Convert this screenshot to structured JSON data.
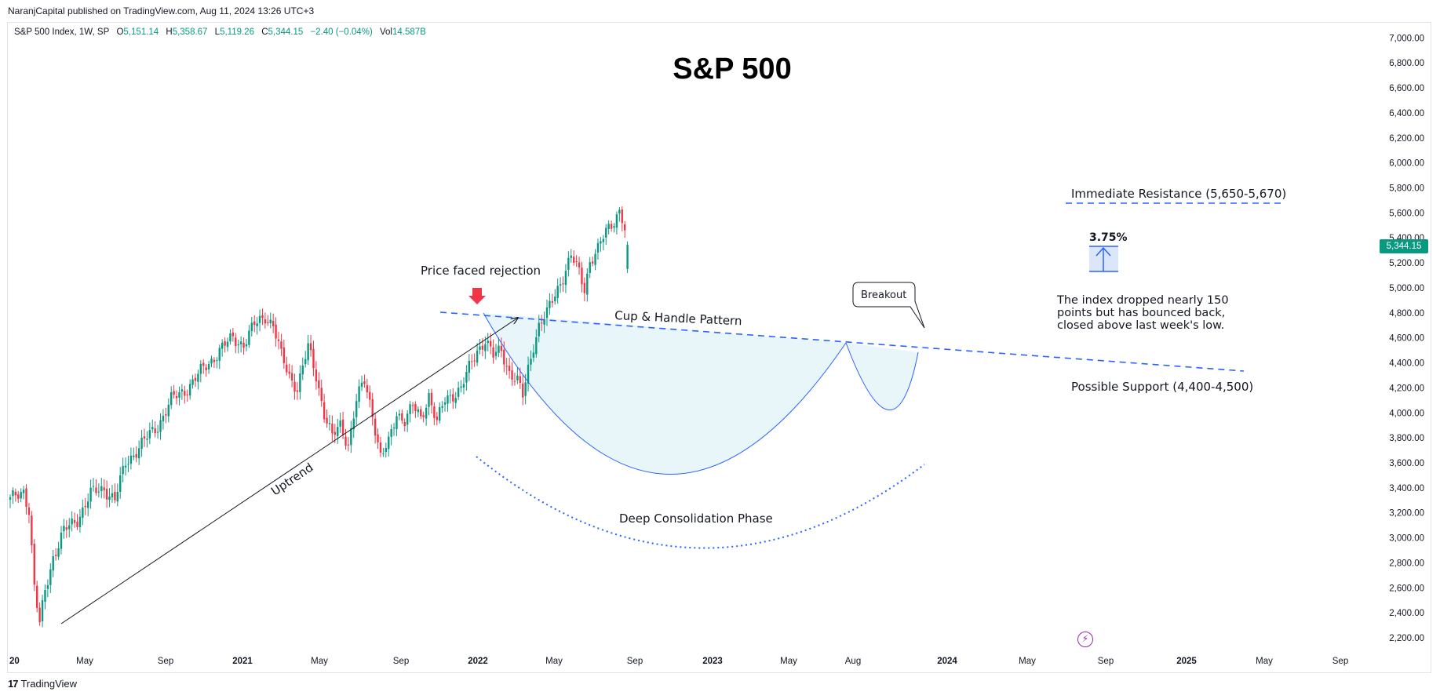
{
  "header": {
    "published": "NaranjCapital published on TradingView.com, Aug 11, 2024 13:26 UTC+3"
  },
  "legend": {
    "symbol": "S&P 500 Index, 1W, SP",
    "o_label": "O",
    "o_value": "5,151.14",
    "h_label": "H",
    "h_value": "5,358.67",
    "l_label": "L",
    "l_value": "5,119.26",
    "c_label": "C",
    "c_value": "5,344.15",
    "change": "−2.40 (−0.04%)",
    "vol_label": "Vol",
    "vol_value": "14.587B"
  },
  "current_price": "5,344.15",
  "brand": {
    "name": "TradingView",
    "logo": "17"
  },
  "colors": {
    "up": "#089981",
    "down": "#f23645",
    "blue": "#2962ff",
    "cup_fill": "#e8f6fa"
  },
  "chart_data": {
    "type": "candlestick",
    "title": "S&P 500",
    "yticks": [
      2200,
      2400,
      2600,
      2800,
      3000,
      3200,
      3400,
      3600,
      3800,
      4000,
      4200,
      4400,
      4600,
      4800,
      5000,
      5200,
      5400,
      5600,
      5800,
      6000,
      6200,
      6400,
      6600,
      6800,
      7000
    ],
    "ytick_labels": [
      "2,200.00",
      "2,400.00",
      "2,600.00",
      "2,800.00",
      "3,000.00",
      "3,200.00",
      "3,400.00",
      "3,600.00",
      "3,800.00",
      "4,000.00",
      "4,200.00",
      "4,400.00",
      "4,600.00",
      "4,800.00",
      "5,000.00",
      "5,200.00",
      "5,400.00",
      "5,600.00",
      "5,800.00",
      "6,000.00",
      "6,200.00",
      "6,400.00",
      "6,600.00",
      "6,800.00",
      "7,000.00"
    ],
    "ylim": [
      2050,
      7050
    ],
    "xticks": [
      {
        "label": "20",
        "bold": true
      },
      {
        "label": "May"
      },
      {
        "label": "Sep"
      },
      {
        "label": "2021",
        "bold": true
      },
      {
        "label": "May"
      },
      {
        "label": "Sep"
      },
      {
        "label": "2022",
        "bold": true
      },
      {
        "label": "May"
      },
      {
        "label": "Sep"
      },
      {
        "label": "2023",
        "bold": true
      },
      {
        "label": "May"
      },
      {
        "label": "Aug"
      },
      {
        "label": "2024",
        "bold": true
      },
      {
        "label": "May"
      },
      {
        "label": "Sep"
      },
      {
        "label": "2025",
        "bold": true
      },
      {
        "label": "May"
      },
      {
        "label": "Sep"
      }
    ],
    "anchors": [
      {
        "week": 0,
        "price": 3300
      },
      {
        "week": 3,
        "price": 3340
      },
      {
        "week": 5,
        "price": 3380
      },
      {
        "week": 7,
        "price": 3230
      },
      {
        "week": 9,
        "price": 2600
      },
      {
        "week": 11,
        "price": 2300
      },
      {
        "week": 13,
        "price": 2580
      },
      {
        "week": 16,
        "price": 2850
      },
      {
        "week": 20,
        "price": 3050
      },
      {
        "week": 25,
        "price": 3150
      },
      {
        "week": 30,
        "price": 3350
      },
      {
        "week": 35,
        "price": 3400
      },
      {
        "week": 39,
        "price": 3300
      },
      {
        "week": 43,
        "price": 3600
      },
      {
        "week": 47,
        "price": 3700
      },
      {
        "week": 55,
        "price": 3900
      },
      {
        "week": 60,
        "price": 4100
      },
      {
        "week": 66,
        "price": 4200
      },
      {
        "week": 72,
        "price": 4350
      },
      {
        "week": 78,
        "price": 4500
      },
      {
        "week": 83,
        "price": 4600
      },
      {
        "week": 87,
        "price": 4550
      },
      {
        "week": 91,
        "price": 4700
      },
      {
        "week": 95,
        "price": 4780
      },
      {
        "week": 98,
        "price": 4700
      },
      {
        "week": 101,
        "price": 4450
      },
      {
        "week": 104,
        "price": 4300
      },
      {
        "week": 107,
        "price": 4200
      },
      {
        "week": 111,
        "price": 4520
      },
      {
        "week": 114,
        "price": 4300
      },
      {
        "week": 117,
        "price": 4000
      },
      {
        "week": 120,
        "price": 3800
      },
      {
        "week": 123,
        "price": 3900
      },
      {
        "week": 126,
        "price": 3750
      },
      {
        "week": 129,
        "price": 4100
      },
      {
        "week": 132,
        "price": 4250
      },
      {
        "week": 135,
        "price": 4000
      },
      {
        "week": 138,
        "price": 3650
      },
      {
        "week": 141,
        "price": 3750
      },
      {
        "week": 144,
        "price": 4000
      },
      {
        "week": 147,
        "price": 3950
      },
      {
        "week": 150,
        "price": 4050
      },
      {
        "week": 153,
        "price": 3950
      },
      {
        "week": 156,
        "price": 4150
      },
      {
        "week": 159,
        "price": 3920
      },
      {
        "week": 162,
        "price": 4100
      },
      {
        "week": 165,
        "price": 4150
      },
      {
        "week": 168,
        "price": 4200
      },
      {
        "week": 171,
        "price": 4350
      },
      {
        "week": 174,
        "price": 4500
      },
      {
        "week": 177,
        "price": 4590
      },
      {
        "week": 180,
        "price": 4450
      },
      {
        "week": 183,
        "price": 4500
      },
      {
        "week": 186,
        "price": 4330
      },
      {
        "week": 189,
        "price": 4250
      },
      {
        "week": 191,
        "price": 4130
      },
      {
        "week": 193,
        "price": 4350
      },
      {
        "week": 195,
        "price": 4550
      },
      {
        "week": 197,
        "price": 4700
      },
      {
        "week": 200,
        "price": 4790
      },
      {
        "week": 203,
        "price": 4950
      },
      {
        "week": 206,
        "price": 5100
      },
      {
        "week": 209,
        "price": 5250
      },
      {
        "week": 212,
        "price": 5120
      },
      {
        "week": 214,
        "price": 5000
      },
      {
        "week": 216,
        "price": 5220
      },
      {
        "week": 219,
        "price": 5300
      },
      {
        "week": 222,
        "price": 5450
      },
      {
        "week": 225,
        "price": 5550
      },
      {
        "week": 227,
        "price": 5620
      },
      {
        "week": 228,
        "price": 5550
      },
      {
        "week": 229,
        "price": 5450
      },
      {
        "week": 230,
        "price": 5344
      }
    ],
    "annotations": {
      "price_rejection": "Price faced rejection",
      "cup_handle": "Cup & Handle Pattern",
      "breakout": "Breakout",
      "uptrend": "Uptrend",
      "deep_consolidation": "Deep Consolidation Phase",
      "immediate_resistance": "Immediate Resistance (5,650-5,670)",
      "possible_support": "Possible Support (4,400-4,500)",
      "percent": "3.75%",
      "note_line1": "The index dropped nearly 150",
      "note_line2": "points but has bounced back,",
      "note_line3": "closed above last week's low."
    }
  }
}
